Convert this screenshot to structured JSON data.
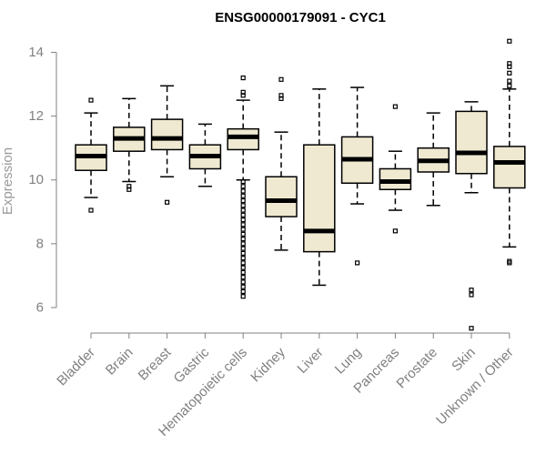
{
  "chart_data": {
    "type": "box",
    "title": "ENSG00000179091 - CYC1",
    "xlabel": "",
    "ylabel": "Expression",
    "ylim": [
      5.2,
      14.5
    ],
    "yticks": [
      6,
      8,
      10,
      12,
      14
    ],
    "grid": false,
    "box_color": "#efe9d2",
    "categories": [
      "Bladder",
      "Brain",
      "Breast",
      "Gastric",
      "Hematopoietic cells",
      "Kidney",
      "Liver",
      "Lung",
      "Pancreas",
      "Prostate",
      "Skin",
      "Unknown / Other"
    ],
    "boxes": [
      {
        "category": "Bladder",
        "whisker_low": 9.45,
        "q1": 10.3,
        "median": 10.75,
        "q3": 11.1,
        "whisker_high": 12.1,
        "outliers": [
          9.05,
          12.5
        ]
      },
      {
        "category": "Brain",
        "whisker_low": 9.95,
        "q1": 10.9,
        "median": 11.3,
        "q3": 11.65,
        "whisker_high": 12.55,
        "outliers": [
          9.7,
          9.8
        ]
      },
      {
        "category": "Breast",
        "whisker_low": 10.1,
        "q1": 10.95,
        "median": 11.3,
        "q3": 11.9,
        "whisker_high": 12.95,
        "outliers": [
          9.3
        ]
      },
      {
        "category": "Gastric",
        "whisker_low": 9.8,
        "q1": 10.35,
        "median": 10.75,
        "q3": 11.1,
        "whisker_high": 11.75,
        "outliers": []
      },
      {
        "category": "Hematopoietic cells",
        "whisker_low": 10.0,
        "q1": 10.95,
        "median": 11.35,
        "q3": 11.6,
        "whisker_high": 12.5,
        "outliers": [
          6.35,
          6.5,
          6.65,
          6.8,
          6.95,
          7.1,
          7.25,
          7.4,
          7.55,
          7.7,
          7.85,
          8.0,
          8.15,
          8.3,
          8.45,
          8.6,
          8.75,
          8.9,
          9.05,
          9.2,
          9.35,
          9.5,
          9.65,
          9.8,
          9.95,
          12.65,
          12.75,
          13.2
        ]
      },
      {
        "category": "Kidney",
        "whisker_low": 7.8,
        "q1": 8.85,
        "median": 9.35,
        "q3": 10.1,
        "whisker_high": 11.5,
        "outliers": [
          12.55,
          12.65,
          13.15
        ]
      },
      {
        "category": "Liver",
        "whisker_low": 6.7,
        "q1": 7.75,
        "median": 8.4,
        "q3": 11.1,
        "whisker_high": 12.85,
        "outliers": []
      },
      {
        "category": "Lung",
        "whisker_low": 9.25,
        "q1": 9.9,
        "median": 10.65,
        "q3": 11.35,
        "whisker_high": 12.9,
        "outliers": [
          7.4
        ]
      },
      {
        "category": "Pancreas",
        "whisker_low": 9.05,
        "q1": 9.7,
        "median": 9.95,
        "q3": 10.35,
        "whisker_high": 10.9,
        "outliers": [
          8.4,
          12.3
        ]
      },
      {
        "category": "Prostate",
        "whisker_low": 9.2,
        "q1": 10.25,
        "median": 10.6,
        "q3": 11.0,
        "whisker_high": 12.1,
        "outliers": []
      },
      {
        "category": "Skin",
        "whisker_low": 9.6,
        "q1": 10.2,
        "median": 10.85,
        "q3": 12.15,
        "whisker_high": 12.45,
        "outliers": [
          5.35,
          6.4,
          6.55
        ]
      },
      {
        "category": "Unknown / Other",
        "whisker_low": 7.9,
        "q1": 9.75,
        "median": 10.55,
        "q3": 11.05,
        "whisker_high": 12.85,
        "outliers": [
          7.4,
          7.45,
          12.95,
          13.1,
          13.35,
          13.55,
          13.65,
          14.35
        ]
      }
    ]
  }
}
